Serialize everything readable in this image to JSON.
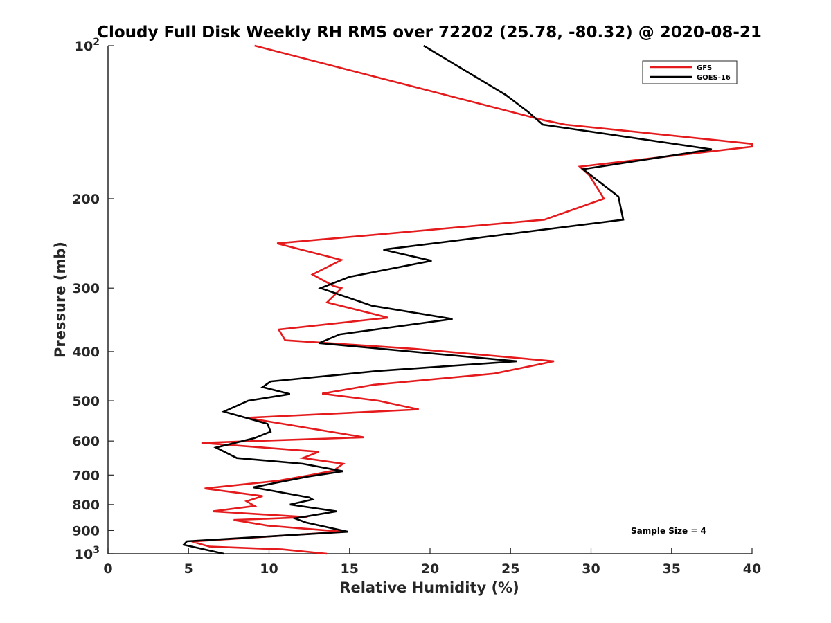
{
  "chart_data": {
    "type": "line",
    "title": "Cloudy Full Disk Weekly RH RMS over 72202 (25.78, -80.32) @ 2020-08-21",
    "xlabel": "Relative Humidity (%)",
    "ylabel": "Pressure (mb)",
    "xlim": [
      0,
      40
    ],
    "ylim": [
      100,
      1000
    ],
    "yscale": "log",
    "y_reversed": true,
    "grid": false,
    "legend_position": "top-right",
    "x_ticks": [
      "0",
      "5",
      "10",
      "15",
      "20",
      "25",
      "30",
      "35",
      "40"
    ],
    "x_tick_values": [
      0,
      5,
      10,
      15,
      20,
      25,
      30,
      35,
      40
    ],
    "y_ticks": [
      {
        "value": 100,
        "base": "10",
        "exp": "2"
      },
      {
        "value": 200,
        "label": "200"
      },
      {
        "value": 300,
        "label": "300"
      },
      {
        "value": 400,
        "label": "400"
      },
      {
        "value": 500,
        "label": "500"
      },
      {
        "value": 600,
        "label": "600"
      },
      {
        "value": 700,
        "label": "700"
      },
      {
        "value": 800,
        "label": "800"
      },
      {
        "value": 900,
        "label": "900"
      },
      {
        "value": 1000,
        "base": "10",
        "exp": "3"
      }
    ],
    "annotation": "Sample Size = 4",
    "series": [
      {
        "name": "GFS",
        "color": "#e41a1c",
        "points": [
          [
            9.1,
            100
          ],
          [
            27.0,
            140
          ],
          [
            28.4,
            143
          ],
          [
            40.0,
            156
          ],
          [
            40.0,
            158
          ],
          [
            29.3,
            173
          ],
          [
            29.9,
            180
          ],
          [
            30.8,
            200
          ],
          [
            27.1,
            220
          ],
          [
            10.5,
            245
          ],
          [
            14.5,
            264
          ],
          [
            12.7,
            282
          ],
          [
            14.0,
            297
          ],
          [
            14.5,
            300
          ],
          [
            13.6,
            320
          ],
          [
            17.4,
            343
          ],
          [
            10.6,
            362
          ],
          [
            11.0,
            380
          ],
          [
            19.0,
            395
          ],
          [
            27.7,
            418
          ],
          [
            24.0,
            442
          ],
          [
            16.5,
            465
          ],
          [
            13.3,
            484
          ],
          [
            16.8,
            500
          ],
          [
            19.3,
            520
          ],
          [
            8.6,
            540
          ],
          [
            11.3,
            558
          ],
          [
            15.9,
            590
          ],
          [
            5.8,
            605
          ],
          [
            13.1,
            630
          ],
          [
            12.1,
            648
          ],
          [
            14.6,
            665
          ],
          [
            14.0,
            686
          ],
          [
            12.6,
            700
          ],
          [
            10.6,
            718
          ],
          [
            6.0,
            744
          ],
          [
            9.6,
            770
          ],
          [
            8.6,
            788
          ],
          [
            9.1,
            805
          ],
          [
            6.5,
            825
          ],
          [
            12.4,
            847
          ],
          [
            7.8,
            858
          ],
          [
            9.9,
            880
          ],
          [
            11.8,
            890
          ],
          [
            14.6,
            905
          ],
          [
            5.2,
            946
          ],
          [
            6.3,
            968
          ],
          [
            10.8,
            980
          ],
          [
            13.6,
            1000
          ]
        ]
      },
      {
        "name": "GOES-16",
        "color": "#000000",
        "points": [
          [
            19.6,
            100
          ],
          [
            24.7,
            125
          ],
          [
            26.1,
            135
          ],
          [
            27.0,
            143
          ],
          [
            37.5,
            160
          ],
          [
            29.5,
            175
          ],
          [
            31.7,
            198
          ],
          [
            32.0,
            220
          ],
          [
            17.1,
            252
          ],
          [
            20.1,
            265
          ],
          [
            15.0,
            285
          ],
          [
            13.2,
            300
          ],
          [
            16.4,
            325
          ],
          [
            21.4,
            345
          ],
          [
            14.4,
            370
          ],
          [
            13.1,
            385
          ],
          [
            25.4,
            418
          ],
          [
            16.7,
            437
          ],
          [
            10.1,
            458
          ],
          [
            9.6,
            470
          ],
          [
            11.3,
            485
          ],
          [
            8.7,
            500
          ],
          [
            7.2,
            525
          ],
          [
            9.9,
            555
          ],
          [
            10.1,
            575
          ],
          [
            9.1,
            592
          ],
          [
            6.7,
            618
          ],
          [
            8.0,
            648
          ],
          [
            12.1,
            665
          ],
          [
            14.6,
            688
          ],
          [
            12.4,
            705
          ],
          [
            9.0,
            740
          ],
          [
            12.5,
            775
          ],
          [
            12.7,
            782
          ],
          [
            11.3,
            800
          ],
          [
            14.2,
            825
          ],
          [
            11.6,
            852
          ],
          [
            12.3,
            868
          ],
          [
            14.9,
            905
          ],
          [
            4.9,
            945
          ],
          [
            4.7,
            960
          ],
          [
            7.2,
            1000
          ]
        ]
      }
    ]
  }
}
